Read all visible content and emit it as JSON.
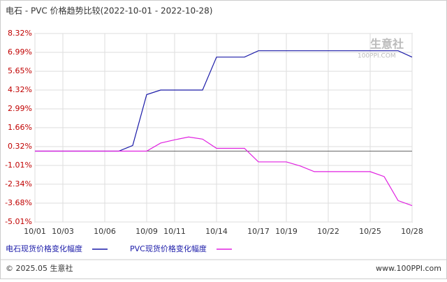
{
  "chart_data": {
    "type": "line",
    "title": "电石 - PVC 价格趋势比较(2022-10-01 - 2022-10-28)",
    "categories": [
      "10/01",
      null,
      "10/03",
      null,
      null,
      "10/06",
      null,
      null,
      "10/09",
      null,
      "10/11",
      null,
      null,
      "10/14",
      null,
      null,
      "10/17",
      null,
      "10/19",
      null,
      null,
      "10/22",
      null,
      null,
      "10/25",
      null,
      null,
      "10/28"
    ],
    "series": [
      {
        "name": "电石现货价格变化幅度",
        "color": "#1a1aa8",
        "values": [
          0,
          0,
          0,
          0,
          0,
          0,
          0,
          0.4,
          4.0,
          4.32,
          4.32,
          4.32,
          4.32,
          6.65,
          6.65,
          6.65,
          7.1,
          7.1,
          7.1,
          7.1,
          7.1,
          7.1,
          7.1,
          7.1,
          7.1,
          7.1,
          7.1,
          6.65
        ]
      },
      {
        "name": "PVC现货价格变化幅度",
        "color": "#e020e0",
        "values": [
          0,
          0,
          0,
          0,
          0,
          0,
          0,
          0,
          0,
          0.57,
          0.8,
          1.0,
          0.85,
          0.2,
          0.2,
          0.2,
          -0.76,
          -0.76,
          -0.76,
          -1.05,
          -1.45,
          -1.45,
          -1.45,
          -1.45,
          -1.45,
          -1.8,
          -3.5,
          -3.85
        ]
      }
    ],
    "ylim": [
      -5.01,
      8.32
    ],
    "yticks": [
      {
        "value": 8.32,
        "label": "8.32%"
      },
      {
        "value": 6.99,
        "label": "6.99%"
      },
      {
        "value": 5.65,
        "label": "5.65%"
      },
      {
        "value": 4.32,
        "label": "4.32%"
      },
      {
        "value": 2.99,
        "label": "2.99%"
      },
      {
        "value": 1.66,
        "label": "1.66%"
      },
      {
        "value": 0.32,
        "label": "0.32%"
      },
      {
        "value": -1.01,
        "label": "-1.01%"
      },
      {
        "value": -2.34,
        "label": "-2.34%"
      },
      {
        "value": -3.68,
        "label": "-3.68%"
      },
      {
        "value": -5.01,
        "label": "-5.01%"
      }
    ],
    "grid": true,
    "watermark": "生意社",
    "watermark_sub": "100PPI.COM",
    "footer_left": "© 2025.05 生意社",
    "footer_right": "www.100PPI.com"
  }
}
